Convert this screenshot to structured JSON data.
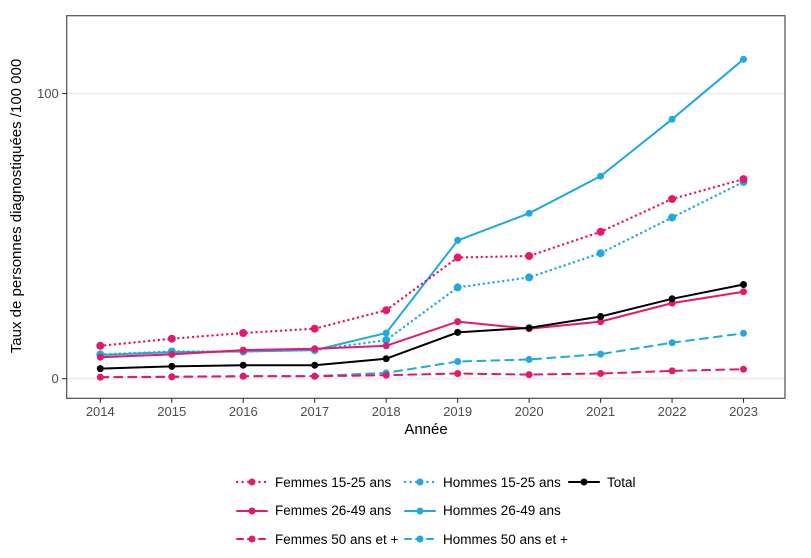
{
  "chart_data": {
    "type": "line",
    "title": "",
    "xlabel": "Année",
    "ylabel": "Taux de personnes diagnostiquées /100 000",
    "x": [
      2014,
      2015,
      2016,
      2017,
      2018,
      2019,
      2020,
      2021,
      2022,
      2023
    ],
    "x_tick_labels": [
      "2014",
      "2015",
      "2016",
      "2017",
      "2018",
      "2019",
      "2020",
      "2021",
      "2022",
      "2023"
    ],
    "y_ticks": [
      0,
      100
    ],
    "xlim": [
      2013.53,
      2023.58
    ],
    "ylim": [
      -6.9,
      127.3
    ],
    "grid": "horizontal-major-only",
    "legend_position": "bottom",
    "units": "taux /100 000",
    "series": [
      {
        "name": "Hommes 15-25 ans",
        "color": "#20A9DE",
        "linetype": "dotted",
        "values": [
          8.5,
          9.5,
          9.5,
          10,
          13.5,
          32,
          35.5,
          44,
          56.5,
          69
        ]
      },
      {
        "name": "Hommes 26-49 ans",
        "color": "#20A9DE",
        "linetype": "solid",
        "values": [
          8.3,
          9.3,
          9.5,
          10,
          16,
          48.5,
          58,
          71,
          91,
          112
        ]
      },
      {
        "name": "Hommes 50 ans et +",
        "color": "#20A9DE",
        "linetype": "dashed",
        "values": [
          0.5,
          0.7,
          0.9,
          0.9,
          2,
          6,
          6.7,
          8.6,
          12.6,
          15.9
        ]
      },
      {
        "name": "Femmes 15-25 ans",
        "color": "#E4186C",
        "linetype": "dotted",
        "values": [
          11.5,
          14,
          16,
          17.5,
          24,
          42.5,
          43,
          51.5,
          63,
          70
        ]
      },
      {
        "name": "Femmes 26-49 ans",
        "color": "#E4186C",
        "linetype": "solid",
        "values": [
          7.5,
          8.5,
          10,
          10.5,
          11.5,
          20,
          17.5,
          20,
          26.5,
          30.5
        ]
      },
      {
        "name": "Femmes 50 ans et +",
        "color": "#E4186C",
        "linetype": "dashed",
        "values": [
          0.5,
          0.6,
          0.8,
          0.8,
          1.2,
          1.8,
          1.4,
          1.8,
          2.7,
          3.3
        ]
      },
      {
        "name": "Total",
        "color": "#000000",
        "linetype": "solid",
        "values": [
          3.5,
          4.3,
          4.7,
          4.7,
          7,
          16.2,
          17.8,
          21.8,
          28,
          33
        ]
      }
    ]
  },
  "legend": {
    "columns": [
      [
        "Femmes 15-25 ans",
        "Femmes 26-49 ans",
        "Femmes 50 ans et +"
      ],
      [
        "Hommes 15-25 ans",
        "Hommes 26-49 ans",
        "Hommes 50 ans et +"
      ],
      [
        "Total"
      ]
    ]
  },
  "colors": {
    "femmes": "#E4186C",
    "hommes": "#20A9DE",
    "total": "#000000",
    "gridline": "#EBEBEB",
    "panel_border": "#4d4d4d",
    "tick_text": "#4d4d4d"
  }
}
